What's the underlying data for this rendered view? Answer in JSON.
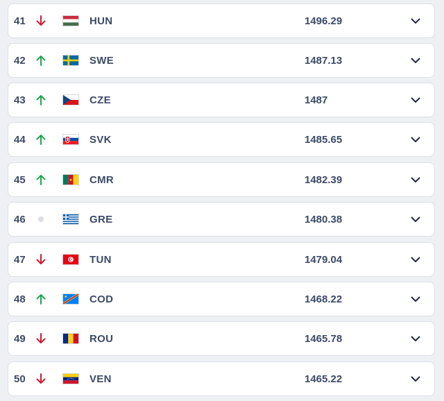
{
  "colors": {
    "up": "#1ea550",
    "down": "#d0182f",
    "neutral": "#dcdee3",
    "text": "#3c4a66"
  },
  "rows": [
    {
      "rank": "41",
      "trend": "down",
      "trend_icon": "arrow-down-icon",
      "code": "HUN",
      "flag": "flag-hungary-icon",
      "points": "1496.29"
    },
    {
      "rank": "42",
      "trend": "up",
      "trend_icon": "arrow-up-icon",
      "code": "SWE",
      "flag": "flag-sweden-icon",
      "points": "1487.13"
    },
    {
      "rank": "43",
      "trend": "up",
      "trend_icon": "arrow-up-icon",
      "code": "CZE",
      "flag": "flag-czechia-icon",
      "points": "1487"
    },
    {
      "rank": "44",
      "trend": "up",
      "trend_icon": "arrow-up-icon",
      "code": "SVK",
      "flag": "flag-slovakia-icon",
      "points": "1485.65"
    },
    {
      "rank": "45",
      "trend": "up",
      "trend_icon": "arrow-up-icon",
      "code": "CMR",
      "flag": "flag-cameroon-icon",
      "points": "1482.39"
    },
    {
      "rank": "46",
      "trend": "neutral",
      "trend_icon": "no-change-dot-icon",
      "code": "GRE",
      "flag": "flag-greece-icon",
      "points": "1480.38"
    },
    {
      "rank": "47",
      "trend": "down",
      "trend_icon": "arrow-down-icon",
      "code": "TUN",
      "flag": "flag-tunisia-icon",
      "points": "1479.04"
    },
    {
      "rank": "48",
      "trend": "up",
      "trend_icon": "arrow-up-icon",
      "code": "COD",
      "flag": "flag-dr-congo-icon",
      "points": "1468.22"
    },
    {
      "rank": "49",
      "trend": "down",
      "trend_icon": "arrow-down-icon",
      "code": "ROU",
      "flag": "flag-romania-icon",
      "points": "1465.78"
    },
    {
      "rank": "50",
      "trend": "down",
      "trend_icon": "arrow-down-icon",
      "code": "VEN",
      "flag": "flag-venezuela-icon",
      "points": "1465.22"
    }
  ],
  "expand_icon": "chevron-down-icon"
}
